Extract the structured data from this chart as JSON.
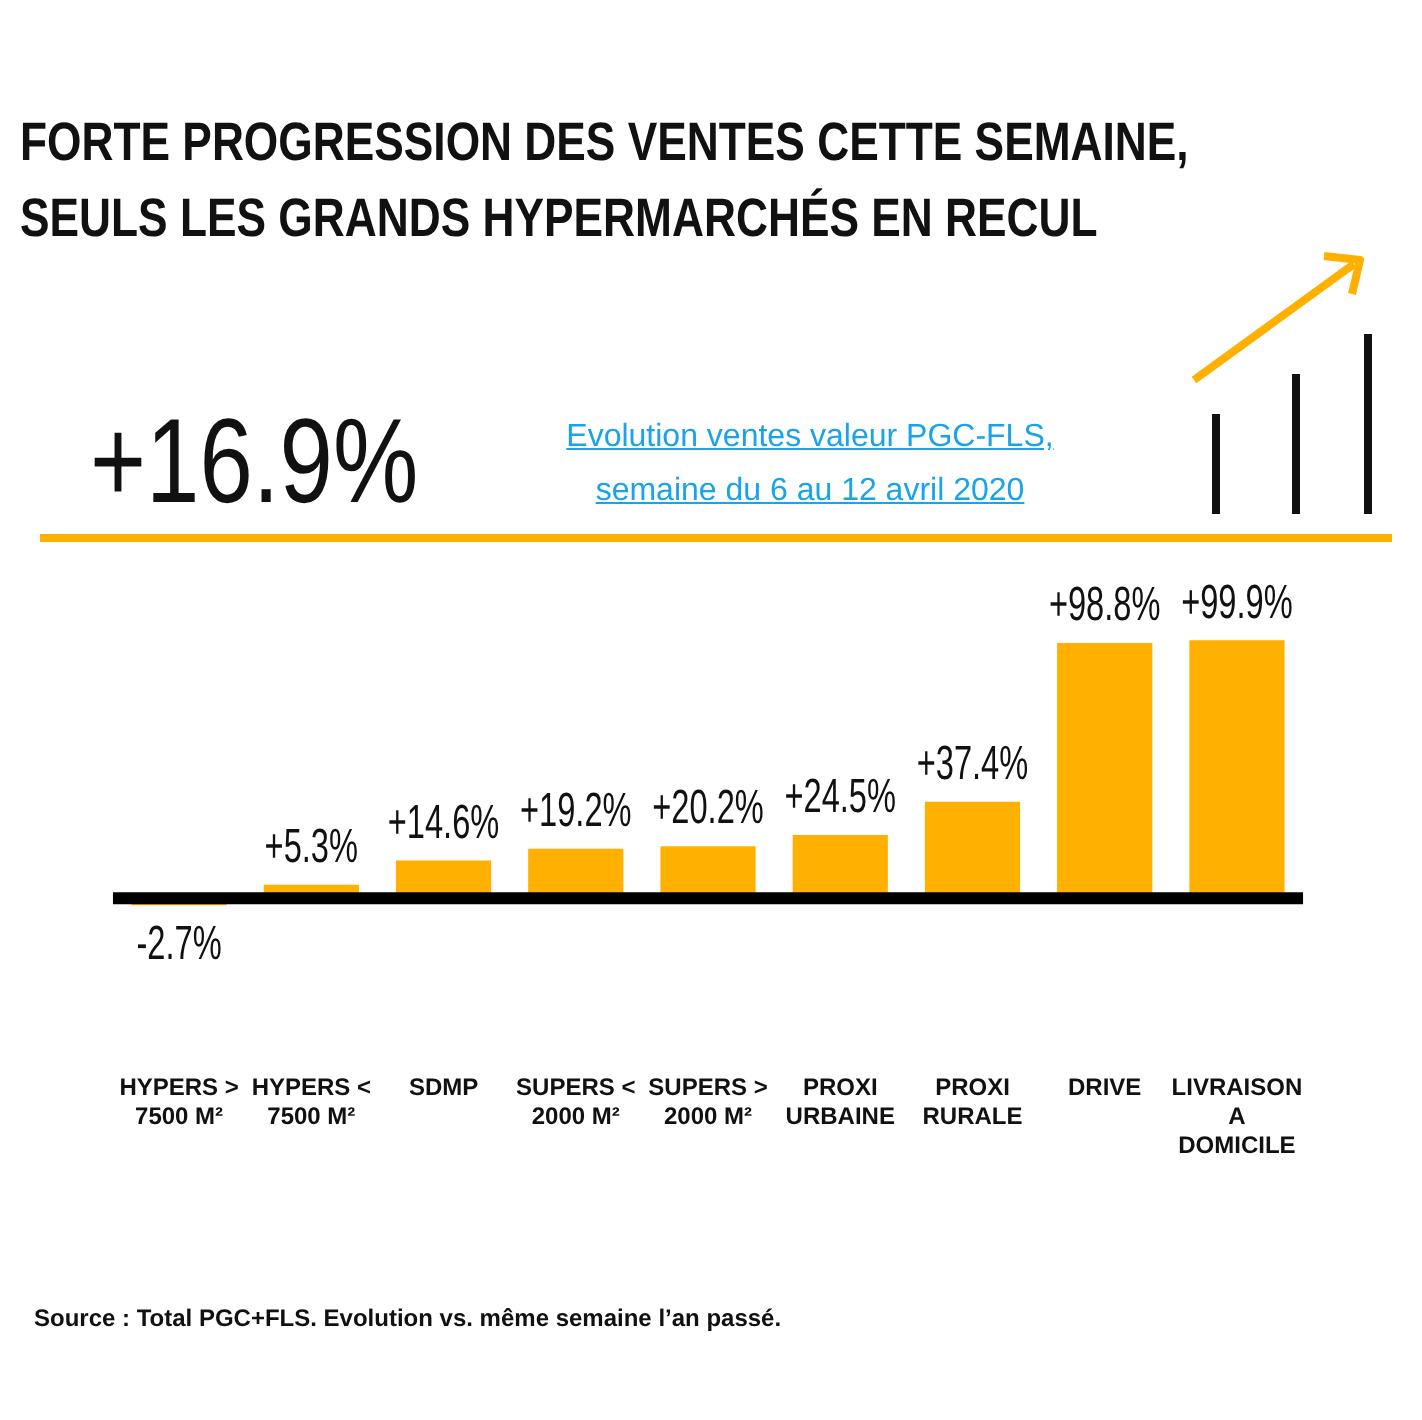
{
  "chart_data": {
    "type": "bar",
    "title": "FORTE PROGRESSION DES VENTES CETTE SEMAINE, SEULS LES GRANDS HYPERMARCHÉS EN RECUL",
    "subtitle": "Evolution ventes valeur PGC-FLS, semaine du 6 au 12 avril 2020",
    "categories": [
      "HYPERS > 7500 M²",
      "HYPERS < 7500 M²",
      "SDMP",
      "SUPERS < 2000 M²",
      "SUPERS > 2000 M²",
      "PROXI URBAINE",
      "PROXI RURALE",
      "DRIVE",
      "LIVRAISON A DOMICILE"
    ],
    "values": [
      -2.7,
      5.3,
      14.6,
      19.2,
      20.2,
      24.5,
      37.4,
      98.8,
      99.9
    ],
    "value_labels": [
      "-2.7%",
      "+5.3%",
      "+14.6%",
      "+19.2%",
      "+20.2%",
      "+24.5%",
      "+37.4%",
      "+98.8%",
      "+99.9%"
    ],
    "color": "#ffb000",
    "grid": false,
    "legend": false,
    "ref_lines": [
      {
        "axis": "y",
        "value": 0,
        "color": "#000000"
      }
    ],
    "annotations": [
      "+16.9%",
      "Source : Total PGC+FLS. Evolution vs. même semaine l’an passé."
    ]
  }
}
